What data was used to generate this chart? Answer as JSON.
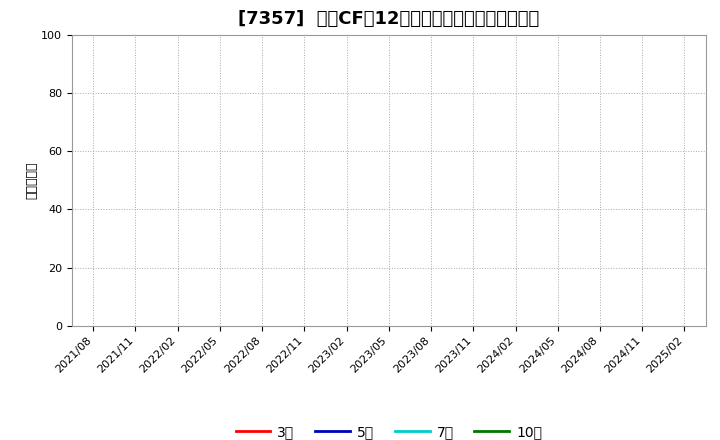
{
  "title": "[7357]  営業CFの12か月移動合計の平均値の推移",
  "ylabel": "（百万円）",
  "ylim": [
    0,
    100
  ],
  "yticks": [
    0,
    20,
    40,
    60,
    80,
    100
  ],
  "x_labels": [
    "2021/08",
    "2021/11",
    "2022/02",
    "2022/05",
    "2022/08",
    "2022/11",
    "2023/02",
    "2023/05",
    "2023/08",
    "2023/11",
    "2024/02",
    "2024/05",
    "2024/08",
    "2024/11",
    "2025/02"
  ],
  "legend_entries": [
    {
      "label": "3年",
      "color": "#ff0000"
    },
    {
      "label": "5年",
      "color": "#0000bb"
    },
    {
      "label": "7年",
      "color": "#00cccc"
    },
    {
      "label": "10年",
      "color": "#007700"
    }
  ],
  "bg_color": "#ffffff",
  "grid_color": "#aaaaaa",
  "title_fontsize": 13,
  "axis_fontsize": 8,
  "ylabel_fontsize": 9,
  "legend_fontsize": 10
}
